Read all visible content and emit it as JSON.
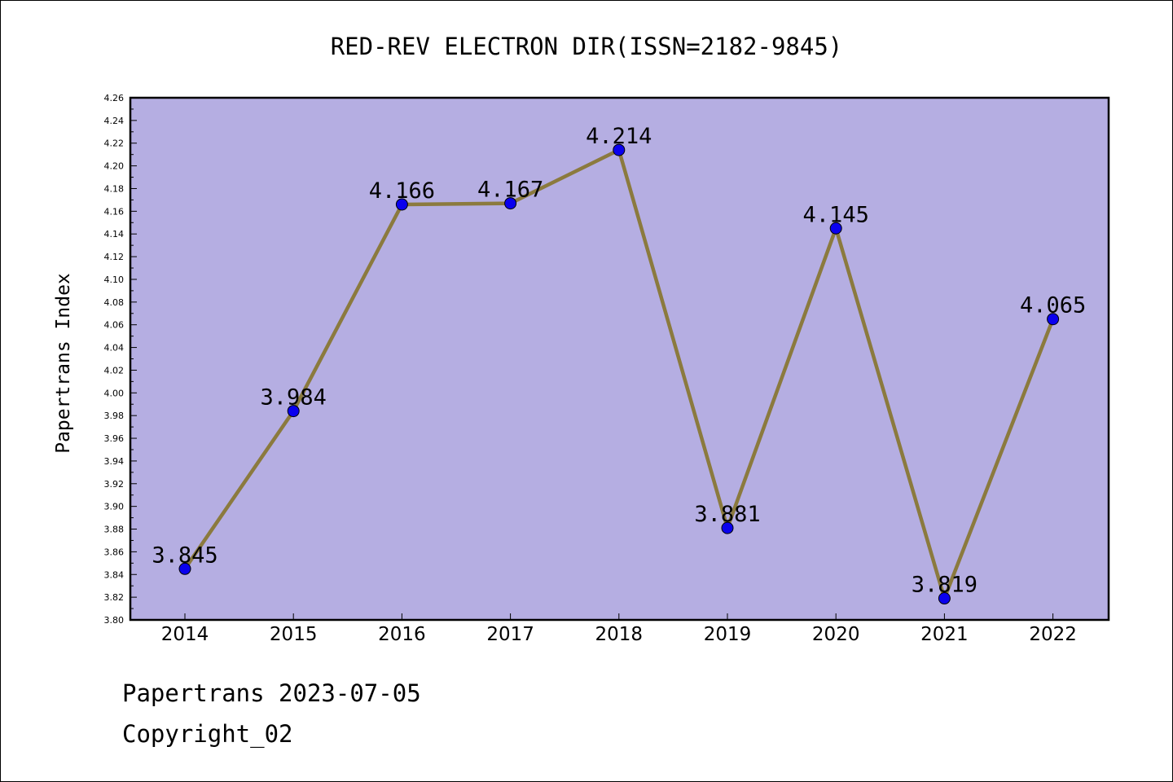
{
  "chart_data": {
    "type": "line",
    "title": "RED-REV ELECTRON DIR(ISSN=2182-9845)",
    "xlabel": "",
    "ylabel": "Papertrans Index",
    "categories": [
      "2014",
      "2015",
      "2016",
      "2017",
      "2018",
      "2019",
      "2020",
      "2021",
      "2022"
    ],
    "series": [
      {
        "values": [
          3.845,
          3.984,
          4.166,
          4.167,
          4.214,
          3.881,
          4.145,
          3.819,
          4.065
        ]
      }
    ],
    "data_labels": [
      "3.845",
      "3.984",
      "4.166",
      "4.167",
      "4.214",
      "3.881",
      "4.145",
      "3.819",
      "4.065"
    ],
    "ylim": [
      3.8,
      4.26
    ],
    "yticks": [
      "3.80",
      "3.82",
      "3.84",
      "3.86",
      "3.88",
      "3.90",
      "3.92",
      "3.94",
      "3.96",
      "3.98",
      "4.00",
      "4.02",
      "4.04",
      "4.06",
      "4.08",
      "4.10",
      "4.12",
      "4.14",
      "4.16",
      "4.18",
      "4.20",
      "4.22",
      "4.24",
      "4.26"
    ],
    "grid": false,
    "legend": "none",
    "colors": {
      "plot_background": "#b5aee2",
      "line": "#8b7a3e",
      "marker": "#0a00ee"
    }
  },
  "footer": {
    "line1": "Papertrans 2023-07-05",
    "line2": "Copyright_02"
  }
}
